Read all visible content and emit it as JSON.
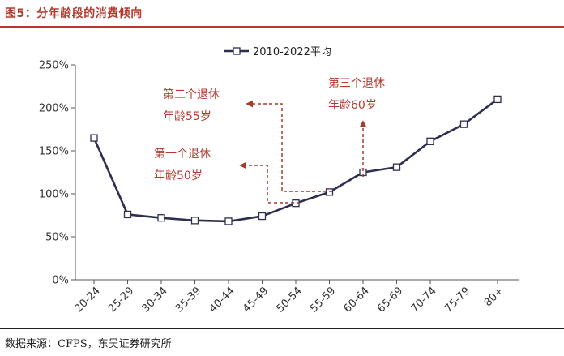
{
  "title": "图5：分年龄段的消费倾向",
  "source": "数据来源：CFPS，东吴证券研究所",
  "chart_data": {
    "type": "line",
    "categories": [
      "20-24",
      "25-29",
      "30-34",
      "35-39",
      "40-44",
      "45-49",
      "50-54",
      "55-59",
      "60-64",
      "65-69",
      "70-74",
      "75-79",
      "80+"
    ],
    "series": [
      {
        "name": "2010-2022平均",
        "values": [
          165,
          76,
          72,
          69,
          68,
          74,
          89,
          102,
          125,
          131,
          161,
          181,
          210
        ],
        "color": "#2e2e4f"
      }
    ],
    "yticks": [
      "0%",
      "50%",
      "100%",
      "150%",
      "200%",
      "250%"
    ],
    "ylim": [
      0,
      250
    ],
    "legend_position": "top-center",
    "grid": false,
    "annotations": [
      {
        "line1": "第一个退休",
        "line2": "年龄50岁"
      },
      {
        "line1": "第二个退休",
        "line2": "年龄55岁"
      },
      {
        "line1": "第三个退休",
        "line2": "年龄60岁"
      }
    ],
    "annotation_color": "#a83a2a"
  }
}
